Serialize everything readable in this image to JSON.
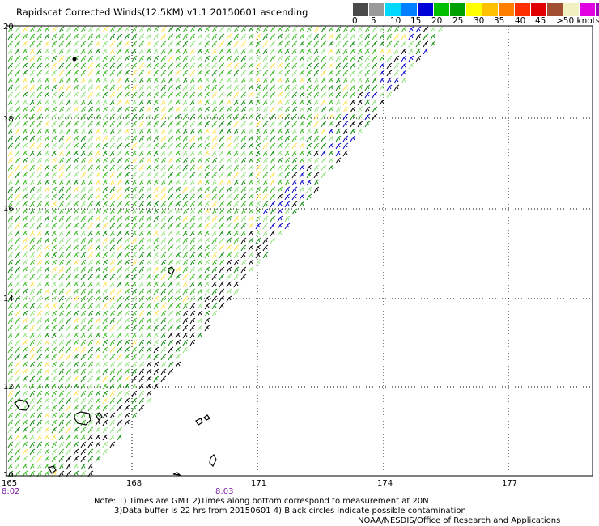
{
  "title": "Rapidscat Corrected Winds(12.5KM) v1.1 20150601 ascending",
  "colorbar": {
    "colors": [
      "#4a4a4a",
      "#9a9a9a",
      "#00d8ff",
      "#0080ff",
      "#0000d8",
      "#00c000",
      "#00a000",
      "#ffff00",
      "#ffc000",
      "#ff8000",
      "#ff3000",
      "#e00000",
      "#a05030",
      "#f0f0c0",
      "#e000e0",
      "#a000c0",
      "#600080"
    ],
    "labels": [
      "0",
      "5",
      "10",
      "15",
      "20",
      "25",
      "30",
      "35",
      "40",
      "45",
      ">50 knots"
    ]
  },
  "map": {
    "lat_ticks": [
      "20",
      "18",
      "16",
      "14",
      "12",
      "10"
    ],
    "lon_ticks": [
      "165",
      "168",
      "171",
      "174",
      "177"
    ],
    "time_labels": [
      "8:02",
      "8:03"
    ],
    "wind_colors": {
      "green_light": "#8ee27a",
      "green": "#33b81c",
      "green_dark": "#0a8c0a",
      "yellow": "#ffe24a",
      "blue": "#0000c8",
      "black": "#000000"
    }
  },
  "notes": {
    "line1": "Note: 1) Times are GMT 2)Times along bottom correspond to measurement at 20N",
    "line2": "3)Data buffer is 22 hrs from 20150601 4) Black circles indicate possible contamination",
    "line3": "NOAA/NESDIS/Office of Research and Applications"
  }
}
